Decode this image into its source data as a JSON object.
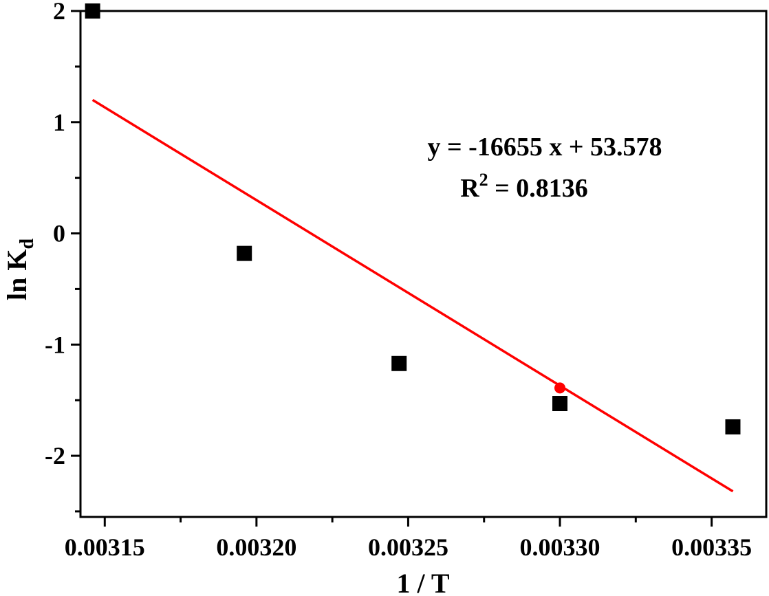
{
  "chart_data": {
    "type": "scatter",
    "xlabel": "1 / T",
    "ylabel": {
      "main": "ln K",
      "sub": "d"
    },
    "xlim": [
      0.003142,
      0.003368
    ],
    "ylim": [
      -2.55,
      2.0
    ],
    "xticks": [
      0.00315,
      0.0032,
      0.00325,
      0.0033,
      0.00335
    ],
    "xtick_labels": [
      "0.00315",
      "0.00320",
      "0.00325",
      "0.00330",
      "0.00335"
    ],
    "yticks": [
      -2,
      -1,
      0,
      1,
      2
    ],
    "ytick_labels": [
      "-2",
      "-1",
      "0",
      "1",
      "2"
    ],
    "series": [
      {
        "marker": "square",
        "color": "#000000",
        "points": [
          {
            "x": 0.003146,
            "y": 2.0
          },
          {
            "x": 0.003196,
            "y": -0.18
          },
          {
            "x": 0.003247,
            "y": -1.17
          },
          {
            "x": 0.0033,
            "y": -1.53
          },
          {
            "x": 0.003357,
            "y": -1.74
          }
        ]
      },
      {
        "marker": "circle",
        "color": "#ff0000",
        "points": [
          {
            "x": 0.0033,
            "y": -1.39
          }
        ]
      }
    ],
    "fit_line": {
      "color": "#ff0000",
      "x": [
        0.003146,
        0.003357
      ],
      "y": [
        1.2,
        -2.32
      ]
    },
    "annotations": {
      "equation": "y = -16655 x + 53.578",
      "r2_prefix": "R",
      "r2_sup": "2",
      "r2_suffix": " = 0.8136"
    }
  }
}
